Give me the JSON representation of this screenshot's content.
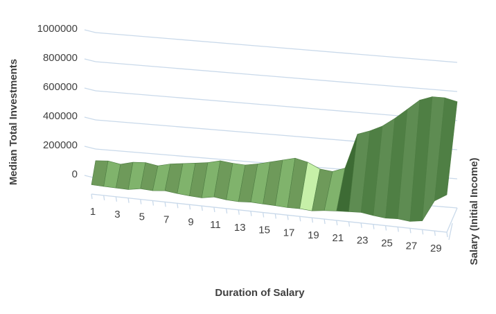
{
  "chart_data": {
    "type": "area",
    "subtype": "3d-surface",
    "title": "",
    "xlabel": "Duration of Salary",
    "ylabel": "Median Total Investments",
    "zlabel": "Salary (Initial Income)",
    "ylim": [
      0,
      1000000
    ],
    "y_ticks": [
      "0",
      "200000",
      "400000",
      "600000",
      "800000",
      "1000000"
    ],
    "x_tick_labels": [
      "1",
      "3",
      "5",
      "7",
      "9",
      "11",
      "13",
      "15",
      "17",
      "19",
      "21",
      "23",
      "25",
      "27",
      "29"
    ],
    "x": [
      1,
      2,
      3,
      4,
      5,
      6,
      7,
      8,
      9,
      10,
      11,
      12,
      13,
      14,
      15,
      16,
      17,
      18,
      19,
      20,
      21,
      22,
      23,
      24,
      25,
      26,
      27,
      28,
      29,
      30
    ],
    "grid": true,
    "legend": "none",
    "colors": {
      "fill": "#6e9a5a",
      "dark": "#3d6b34",
      "light": "#c6f0a8",
      "grid": "#c9d9ea",
      "text": "#404040"
    },
    "series": [
      {
        "values": [
          120000,
          125000,
          110000,
          130000,
          135000,
          120000,
          140000,
          150000,
          160000,
          170000,
          190000,
          180000,
          175000,
          190000,
          210000,
          230000,
          250000,
          230000,
          190000,
          180000,
          210000,
          450000,
          480000,
          520000,
          580000,
          650000,
          720000,
          750000,
          750000,
          730000
        ]
      },
      {
        "values": [
          75000,
          72000,
          70000,
          68000,
          85000,
          80000,
          90000,
          78000,
          70000,
          65000,
          82000,
          70000,
          66000,
          72000,
          68000,
          65000,
          60000,
          62000,
          55000,
          68000,
          75000,
          80000,
          85000,
          70000,
          60000,
          65000,
          55000,
          70000,
          240000,
          300000
        ]
      }
    ]
  }
}
